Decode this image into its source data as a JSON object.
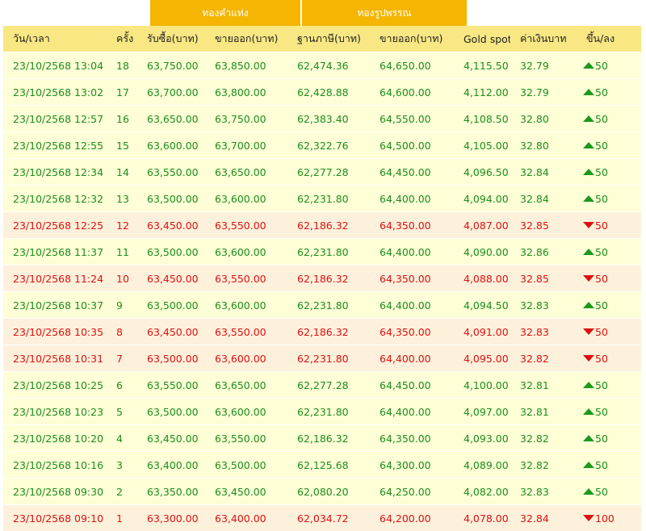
{
  "colors": {
    "group_header_bg": "#f5b500",
    "column_header_bg": "#f8e783",
    "up_row_bg": "#fefed7",
    "up_text": "#1c8e1c",
    "down_row_bg": "#fdf1dc",
    "down_text": "#e01010"
  },
  "groups": {
    "gold_bar": "ทองคำแท่ง",
    "gold_ornament": "ทองรูปพรรณ"
  },
  "columns": [
    "วัน/เวลา",
    "ครั้ง",
    "รับซื้อ(บาท)",
    "ขายออก(บาท)",
    "ฐานภาษี(บาท)",
    "ขายออก(บาท)",
    "Gold spot",
    "ค่าเงินบาท",
    "ขึ้น/ลง"
  ],
  "rows": [
    {
      "datetime": "23/10/2568 13:04",
      "round": "18",
      "bar_buy": "63,750.00",
      "bar_sell": "63,850.00",
      "tax_base": "62,474.36",
      "orn_sell": "64,650.00",
      "spot": "4,115.50",
      "thb": "32.79",
      "dir": "up",
      "change": "50",
      "arrow_icon": "triangle-up-icon"
    },
    {
      "datetime": "23/10/2568 13:02",
      "round": "17",
      "bar_buy": "63,700.00",
      "bar_sell": "63,800.00",
      "tax_base": "62,428.88",
      "orn_sell": "64,600.00",
      "spot": "4,112.00",
      "thb": "32.79",
      "dir": "up",
      "change": "50",
      "arrow_icon": "triangle-up-icon"
    },
    {
      "datetime": "23/10/2568 12:57",
      "round": "16",
      "bar_buy": "63,650.00",
      "bar_sell": "63,750.00",
      "tax_base": "62,383.40",
      "orn_sell": "64,550.00",
      "spot": "4,108.50",
      "thb": "32.80",
      "dir": "up",
      "change": "50",
      "arrow_icon": "triangle-up-icon"
    },
    {
      "datetime": "23/10/2568 12:55",
      "round": "15",
      "bar_buy": "63,600.00",
      "bar_sell": "63,700.00",
      "tax_base": "62,322.76",
      "orn_sell": "64,500.00",
      "spot": "4,105.00",
      "thb": "32.80",
      "dir": "up",
      "change": "50",
      "arrow_icon": "triangle-up-icon"
    },
    {
      "datetime": "23/10/2568 12:34",
      "round": "14",
      "bar_buy": "63,550.00",
      "bar_sell": "63,650.00",
      "tax_base": "62,277.28",
      "orn_sell": "64,450.00",
      "spot": "4,096.50",
      "thb": "32.84",
      "dir": "up",
      "change": "50",
      "arrow_icon": "triangle-up-icon"
    },
    {
      "datetime": "23/10/2568 12:32",
      "round": "13",
      "bar_buy": "63,500.00",
      "bar_sell": "63,600.00",
      "tax_base": "62,231.80",
      "orn_sell": "64,400.00",
      "spot": "4,094.00",
      "thb": "32.84",
      "dir": "up",
      "change": "50",
      "arrow_icon": "triangle-up-icon"
    },
    {
      "datetime": "23/10/2568 12:25",
      "round": "12",
      "bar_buy": "63,450.00",
      "bar_sell": "63,550.00",
      "tax_base": "62,186.32",
      "orn_sell": "64,350.00",
      "spot": "4,087.00",
      "thb": "32.85",
      "dir": "down",
      "change": "50",
      "arrow_icon": "triangle-down-icon"
    },
    {
      "datetime": "23/10/2568 11:37",
      "round": "11",
      "bar_buy": "63,500.00",
      "bar_sell": "63,600.00",
      "tax_base": "62,231.80",
      "orn_sell": "64,400.00",
      "spot": "4,090.00",
      "thb": "32.86",
      "dir": "up",
      "change": "50",
      "arrow_icon": "triangle-up-icon"
    },
    {
      "datetime": "23/10/2568 11:24",
      "round": "10",
      "bar_buy": "63,450.00",
      "bar_sell": "63,550.00",
      "tax_base": "62,186.32",
      "orn_sell": "64,350.00",
      "spot": "4,088.00",
      "thb": "32.85",
      "dir": "down",
      "change": "50",
      "arrow_icon": "triangle-down-icon"
    },
    {
      "datetime": "23/10/2568 10:37",
      "round": "9",
      "bar_buy": "63,500.00",
      "bar_sell": "63,600.00",
      "tax_base": "62,231.80",
      "orn_sell": "64,400.00",
      "spot": "4,094.50",
      "thb": "32.83",
      "dir": "up",
      "change": "50",
      "arrow_icon": "triangle-up-icon"
    },
    {
      "datetime": "23/10/2568 10:35",
      "round": "8",
      "bar_buy": "63,450.00",
      "bar_sell": "63,550.00",
      "tax_base": "62,186.32",
      "orn_sell": "64,350.00",
      "spot": "4,091.00",
      "thb": "32.83",
      "dir": "down",
      "change": "50",
      "arrow_icon": "triangle-down-icon"
    },
    {
      "datetime": "23/10/2568 10:31",
      "round": "7",
      "bar_buy": "63,500.00",
      "bar_sell": "63,600.00",
      "tax_base": "62,231.80",
      "orn_sell": "64,400.00",
      "spot": "4,095.00",
      "thb": "32.82",
      "dir": "down",
      "change": "50",
      "arrow_icon": "triangle-down-icon"
    },
    {
      "datetime": "23/10/2568 10:25",
      "round": "6",
      "bar_buy": "63,550.00",
      "bar_sell": "63,650.00",
      "tax_base": "62,277.28",
      "orn_sell": "64,450.00",
      "spot": "4,100.00",
      "thb": "32.81",
      "dir": "up",
      "change": "50",
      "arrow_icon": "triangle-up-icon"
    },
    {
      "datetime": "23/10/2568 10:23",
      "round": "5",
      "bar_buy": "63,500.00",
      "bar_sell": "63,600.00",
      "tax_base": "62,231.80",
      "orn_sell": "64,400.00",
      "spot": "4,097.00",
      "thb": "32.81",
      "dir": "up",
      "change": "50",
      "arrow_icon": "triangle-up-icon"
    },
    {
      "datetime": "23/10/2568 10:20",
      "round": "4",
      "bar_buy": "63,450.00",
      "bar_sell": "63,550.00",
      "tax_base": "62,186.32",
      "orn_sell": "64,350.00",
      "spot": "4,093.00",
      "thb": "32.82",
      "dir": "up",
      "change": "50",
      "arrow_icon": "triangle-up-icon"
    },
    {
      "datetime": "23/10/2568 10:16",
      "round": "3",
      "bar_buy": "63,400.00",
      "bar_sell": "63,500.00",
      "tax_base": "62,125.68",
      "orn_sell": "64,300.00",
      "spot": "4,089.00",
      "thb": "32.82",
      "dir": "up",
      "change": "50",
      "arrow_icon": "triangle-up-icon"
    },
    {
      "datetime": "23/10/2568 09:30",
      "round": "2",
      "bar_buy": "63,350.00",
      "bar_sell": "63,450.00",
      "tax_base": "62,080.20",
      "orn_sell": "64,250.00",
      "spot": "4,082.00",
      "thb": "32.83",
      "dir": "up",
      "change": "50",
      "arrow_icon": "triangle-up-icon"
    },
    {
      "datetime": "23/10/2568 09:10",
      "round": "1",
      "bar_buy": "63,300.00",
      "bar_sell": "63,400.00",
      "tax_base": "62,034.72",
      "orn_sell": "64,200.00",
      "spot": "4,078.00",
      "thb": "32.84",
      "dir": "down",
      "change": "100",
      "arrow_icon": "triangle-down-icon"
    }
  ]
}
